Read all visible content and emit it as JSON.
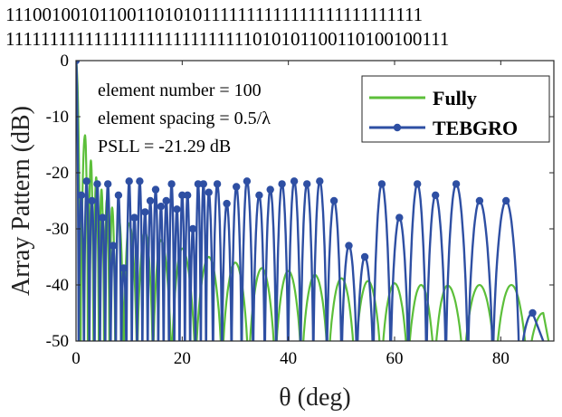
{
  "header": {
    "bits_line1": "1110010010110011010101111111111111111111111111",
    "bits_line2": "1111111111111111111111111111010101100110100100111"
  },
  "chart_data": {
    "type": "line",
    "xlabel": "θ (deg)",
    "ylabel": "Array Pattern (dB)",
    "xlim": [
      0,
      90
    ],
    "ylim": [
      -50,
      0
    ],
    "xticks": [
      0,
      20,
      40,
      60,
      80
    ],
    "yticks": [
      0,
      -10,
      -20,
      -30,
      -40,
      -50
    ],
    "annotations": [
      "element number = 100",
      "element spacing = 0.5/λ",
      "PSLL = -21.29 dB"
    ],
    "legend_position": "top-right",
    "series": [
      {
        "name": "Fully",
        "color": "#5cbf3a",
        "marker": "none",
        "lobe_peaks": {
          "theta": [
            0,
            1.7,
            2.8,
            3.8,
            4.8,
            5.8,
            6.8,
            8,
            10,
            13,
            16,
            20,
            25,
            30,
            35,
            40,
            45,
            50,
            55,
            60,
            65,
            70,
            76,
            82,
            88
          ],
          "db": [
            0,
            -13.3,
            -17.8,
            -20.8,
            -23,
            -24.8,
            -26.2,
            -27.5,
            -29,
            -30.5,
            -32,
            -33.5,
            -35,
            -36,
            -37,
            -37.5,
            -38.2,
            -38.8,
            -39.3,
            -39.7,
            -40,
            -40.1,
            -40,
            -40,
            -45
          ]
        }
      },
      {
        "name": "TEBGRO",
        "color": "#2e4fa3",
        "marker": "circle",
        "lobe_peaks": {
          "theta": [
            0,
            1,
            2,
            3,
            4,
            5,
            6,
            7,
            8,
            9,
            10,
            11,
            12,
            13,
            14,
            15,
            16,
            17,
            18,
            19,
            20,
            21,
            22,
            23,
            24,
            25,
            26.6,
            28.4,
            30.2,
            32.2,
            34.5,
            36.6,
            38.8,
            41.1,
            43.5,
            45.9,
            48.6,
            51.4,
            54.4,
            57.6,
            60.9,
            64.3,
            67.7,
            71.6,
            76,
            81,
            86
          ],
          "db": [
            0,
            -24,
            -21.5,
            -25,
            -22,
            -28,
            -22,
            -33,
            -24,
            -37,
            -21.5,
            -28,
            -21.5,
            -27,
            -25,
            -23,
            -26,
            -25,
            -22,
            -26.5,
            -24,
            -24,
            -30,
            -22,
            -22,
            -23.5,
            -22,
            -25.5,
            -22.5,
            -21.5,
            -24,
            -23,
            -22,
            -21.5,
            -22,
            -21.5,
            -25,
            -33,
            -35,
            -22,
            -28,
            -22,
            -24,
            -22,
            -25,
            -25,
            -45
          ]
        }
      }
    ]
  }
}
